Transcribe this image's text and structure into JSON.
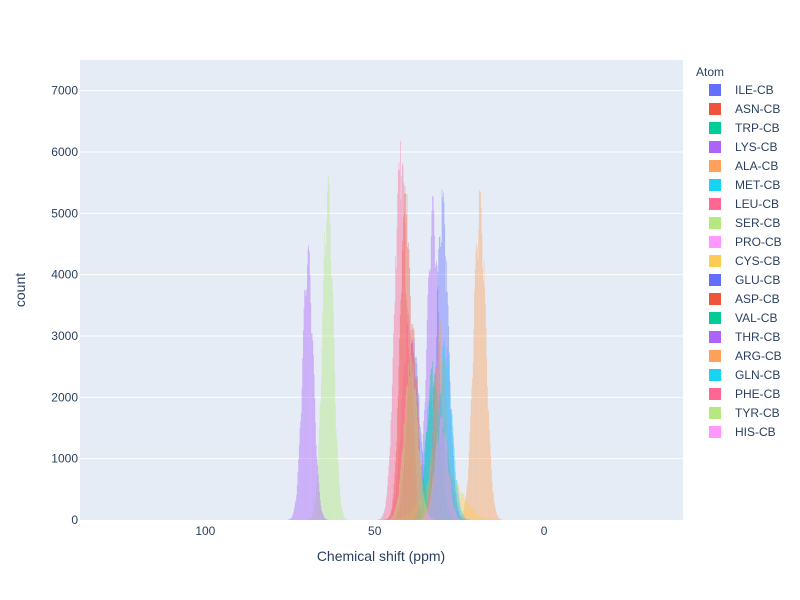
{
  "chart_data": {
    "type": "histogram",
    "xlabel": "Chemical shift (ppm)",
    "ylabel": "count",
    "x_axis_reversed": true,
    "xlim": [
      137,
      -41
    ],
    "ylim": [
      0,
      7500
    ],
    "x_ticks": [
      100,
      50,
      0
    ],
    "y_ticks": [
      0,
      1000,
      2000,
      3000,
      4000,
      5000,
      6000,
      7000
    ],
    "grid": true,
    "barmode": "overlay",
    "legend": {
      "title": "Atom",
      "position": "right"
    },
    "series": [
      {
        "name": "ILE-CB",
        "color": "#636efa",
        "center": 38.6,
        "peak": 3000,
        "sigma": 1.9
      },
      {
        "name": "ASN-CB",
        "color": "#EF553B",
        "center": 38.8,
        "peak": 3200,
        "sigma": 1.6
      },
      {
        "name": "TRP-CB",
        "color": "#00cc96",
        "center": 29.9,
        "peak": 1500,
        "sigma": 1.9
      },
      {
        "name": "LYS-CB",
        "color": "#ab63fa",
        "center": 32.8,
        "peak": 5300,
        "sigma": 1.8
      },
      {
        "name": "ALA-CB",
        "color": "#FFA15A",
        "center": 19.0,
        "peak": 5400,
        "sigma": 1.8
      },
      {
        "name": "MET-CB",
        "color": "#19d3f3",
        "center": 32.9,
        "peak": 2200,
        "sigma": 2.2
      },
      {
        "name": "LEU-CB",
        "color": "#FF6692",
        "center": 42.3,
        "peak": 6200,
        "sigma": 1.8
      },
      {
        "name": "SER-CB",
        "color": "#B6E880",
        "center": 63.8,
        "peak": 5650,
        "sigma": 1.6
      },
      {
        "name": "PRO-CB",
        "color": "#FF97FF",
        "center": 31.9,
        "peak": 2500,
        "sigma": 1.2
      },
      {
        "name": "CYS-CB",
        "color": "#FECB52",
        "center": 30.0,
        "peak": 900,
        "sigma": 5.0
      },
      {
        "name": "GLU-CB",
        "color": "#636efa",
        "center": 30.0,
        "peak": 5400,
        "sigma": 1.8
      },
      {
        "name": "ASP-CB",
        "color": "#EF553B",
        "center": 40.9,
        "peak": 5500,
        "sigma": 1.6
      },
      {
        "name": "VAL-CB",
        "color": "#00cc96",
        "center": 32.8,
        "peak": 2600,
        "sigma": 1.8
      },
      {
        "name": "THR-CB",
        "color": "#ab63fa",
        "center": 69.7,
        "peak": 4530,
        "sigma": 1.6
      },
      {
        "name": "ARG-CB",
        "color": "#FFA15A",
        "center": 30.7,
        "peak": 3300,
        "sigma": 1.8
      },
      {
        "name": "GLN-CB",
        "color": "#19d3f3",
        "center": 29.2,
        "peak": 3000,
        "sigma": 2.0
      },
      {
        "name": "PHE-CB",
        "color": "#FF6692",
        "center": 39.9,
        "peak": 3400,
        "sigma": 2.0
      },
      {
        "name": "TYR-CB",
        "color": "#B6E880",
        "center": 39.3,
        "peak": 2700,
        "sigma": 2.0
      },
      {
        "name": "HIS-CB",
        "color": "#FF97FF",
        "center": 30.3,
        "peak": 1700,
        "sigma": 1.9
      }
    ]
  }
}
